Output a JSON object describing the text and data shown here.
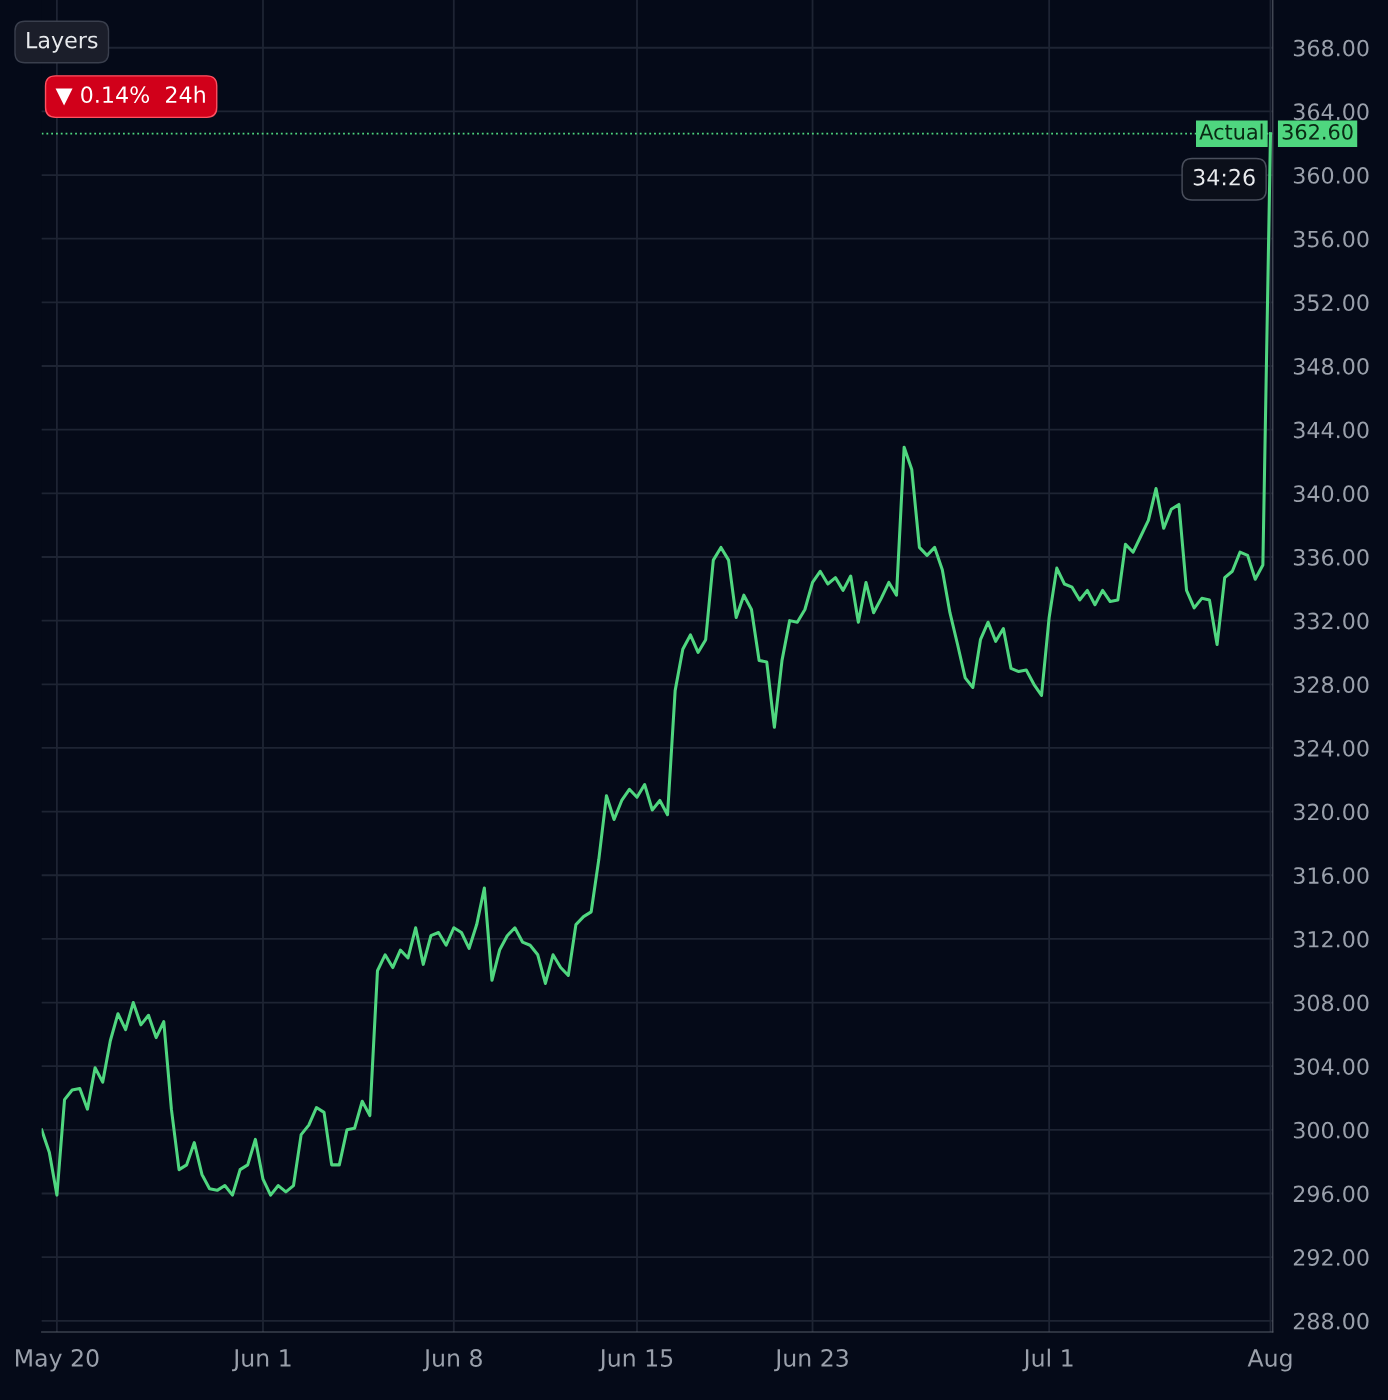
{
  "chart_data": {
    "type": "line",
    "annotations": [
      "Layers",
      "▼ 0.14%  24h",
      "34:26"
    ],
    "categories": [
      null,
      null,
      "May 20",
      null,
      null,
      null,
      null,
      null,
      null,
      null,
      null,
      null,
      null,
      null,
      null,
      null,
      null,
      null,
      null,
      null,
      null,
      null,
      null,
      null,
      null,
      null,
      null,
      null,
      null,
      "Jun 1",
      null,
      null,
      null,
      null,
      null,
      null,
      null,
      null,
      null,
      null,
      null,
      null,
      null,
      null,
      null,
      null,
      null,
      null,
      null,
      null,
      null,
      null,
      null,
      null,
      "Jun 8",
      null,
      null,
      null,
      null,
      null,
      null,
      null,
      null,
      null,
      null,
      null,
      null,
      null,
      null,
      null,
      null,
      null,
      null,
      null,
      null,
      null,
      null,
      null,
      "Jun 15",
      null,
      null,
      null,
      null,
      null,
      null,
      null,
      null,
      null,
      null,
      null,
      null,
      null,
      null,
      null,
      null,
      null,
      null,
      null,
      null,
      null,
      null,
      "Jun 23",
      null,
      null,
      null,
      null,
      null,
      null,
      null,
      null,
      null,
      null,
      null,
      null,
      null,
      null,
      null,
      null,
      null,
      null,
      null,
      null,
      null,
      null,
      null,
      null,
      null,
      null,
      null,
      null,
      null,
      null,
      "Jul 1",
      null,
      null,
      null,
      null,
      null,
      null,
      null,
      null,
      null,
      null,
      null,
      null,
      null,
      null,
      null,
      null,
      null,
      null,
      null,
      null,
      null,
      null,
      null,
      null,
      null,
      null,
      null,
      null,
      "Aug"
    ],
    "series": [
      {
        "name": "Actual",
        "color": "#4fd67f",
        "values": [
          300.0,
          298.6,
          295.9,
          301.9,
          302.5,
          302.6,
          301.3,
          303.9,
          303.0,
          305.6,
          307.3,
          306.3,
          308.0,
          306.6,
          307.2,
          305.8,
          306.8,
          301.3,
          297.5,
          297.8,
          299.2,
          297.2,
          296.3,
          296.2,
          296.5,
          295.9,
          297.5,
          297.8,
          299.4,
          296.9,
          295.9,
          296.5,
          296.1,
          296.5,
          299.7,
          300.3,
          301.4,
          301.1,
          297.8,
          297.8,
          300.0,
          300.1,
          301.8,
          300.9,
          310.0,
          311.0,
          310.2,
          311.3,
          310.8,
          312.7,
          310.4,
          312.2,
          312.4,
          311.6,
          312.7,
          312.4,
          311.4,
          312.9,
          315.2,
          309.4,
          311.3,
          312.2,
          312.7,
          311.8,
          311.6,
          311.0,
          309.2,
          311.0,
          310.2,
          309.7,
          312.9,
          313.4,
          313.7,
          317.0,
          321.0,
          319.5,
          320.7,
          321.4,
          320.9,
          321.7,
          320.1,
          320.7,
          319.8,
          327.6,
          330.2,
          331.1,
          330.0,
          330.8,
          335.8,
          336.6,
          335.8,
          332.2,
          333.6,
          332.7,
          329.5,
          329.4,
          325.3,
          329.5,
          332.0,
          331.9,
          332.7,
          334.4,
          335.1,
          334.3,
          334.7,
          333.9,
          334.8,
          331.9,
          334.4,
          332.5,
          333.4,
          334.4,
          333.6,
          342.9,
          341.5,
          336.6,
          336.1,
          336.6,
          335.2,
          332.5,
          330.5,
          328.4,
          327.8,
          330.8,
          331.9,
          330.7,
          331.5,
          329.0,
          328.8,
          328.9,
          328.0,
          327.3,
          332.2,
          335.3,
          334.3,
          334.1,
          333.3,
          333.9,
          333.0,
          333.9,
          333.2,
          333.3,
          336.8,
          336.3,
          337.3,
          338.3,
          340.3,
          337.8,
          339.0,
          339.3,
          333.9,
          332.8,
          333.4,
          333.3,
          330.5,
          334.7,
          335.1,
          336.3,
          336.1,
          334.6,
          335.5,
          362.6
        ]
      }
    ],
    "ylim": [
      287.3,
      371.0
    ],
    "yticks": [
      {
        "value": 288,
        "label": "288.00"
      },
      {
        "value": 292,
        "label": "292.00"
      },
      {
        "value": 296,
        "label": "296.00"
      },
      {
        "value": 300,
        "label": "300.00"
      },
      {
        "value": 304,
        "label": "304.00"
      },
      {
        "value": 308,
        "label": "308.00"
      },
      {
        "value": 312,
        "label": "312.00"
      },
      {
        "value": 316,
        "label": "316.00"
      },
      {
        "value": 320,
        "label": "320.00"
      },
      {
        "value": 324,
        "label": "324.00"
      },
      {
        "value": 328,
        "label": "328.00"
      },
      {
        "value": 332,
        "label": "332.00"
      },
      {
        "value": 336,
        "label": "336.00"
      },
      {
        "value": 340,
        "label": "340.00"
      },
      {
        "value": 344,
        "label": "344.00"
      },
      {
        "value": 348,
        "label": "348.00"
      },
      {
        "value": 352,
        "label": "352.00"
      },
      {
        "value": 356,
        "label": "356.00"
      },
      {
        "value": 360,
        "label": "360.00"
      },
      {
        "value": 364,
        "label": "364.00"
      },
      {
        "value": 368,
        "label": "368.00"
      }
    ],
    "ref_lines": [
      {
        "axis": "y",
        "value": 362.6,
        "label": "362.60",
        "color": "#4fd67f",
        "line_style": "dotted"
      }
    ],
    "grid": true,
    "marker": "none",
    "line_style": "solid",
    "legend": false
  }
}
